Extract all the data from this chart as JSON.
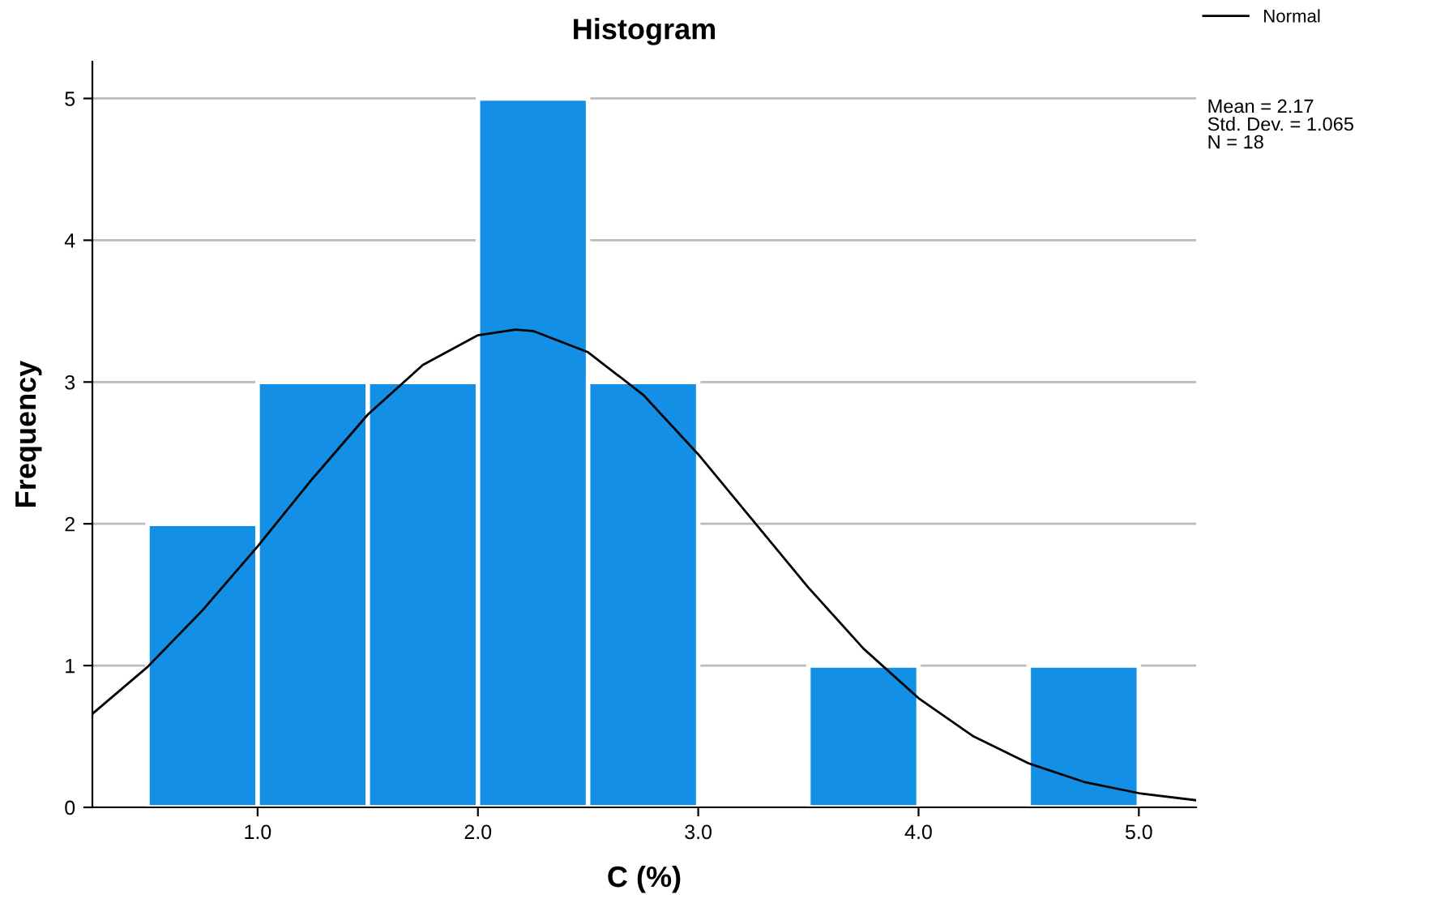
{
  "chart_data": {
    "type": "histogram",
    "title": "Histogram",
    "xlabel": "C (%)",
    "ylabel": "Frequency",
    "bins": [
      0.5,
      1.0,
      1.5,
      2.0,
      2.5,
      3.0,
      3.5,
      4.0,
      4.5,
      5.0
    ],
    "values": [
      2,
      3,
      3,
      5,
      3,
      0,
      1,
      0,
      1
    ],
    "color": "#138fe6",
    "series": [
      {
        "name": "Normal",
        "type": "line",
        "color": "#000000",
        "x": [
          0.25,
          0.5,
          0.75,
          1.0,
          1.25,
          1.5,
          1.75,
          2.0,
          2.17,
          2.25,
          2.5,
          2.75,
          3.0,
          3.25,
          3.5,
          3.75,
          4.0,
          4.25,
          4.5,
          4.75,
          5.0,
          5.26
        ],
        "values": [
          0.66,
          0.99,
          1.39,
          1.84,
          2.32,
          2.77,
          3.12,
          3.33,
          3.37,
          3.36,
          3.21,
          2.91,
          2.49,
          2.02,
          1.55,
          1.12,
          0.77,
          0.5,
          0.31,
          0.18,
          0.1,
          0.05
        ]
      }
    ],
    "xlim": [
      0.25,
      5.26
    ],
    "ylim": [
      0,
      5.26
    ],
    "xticks": [
      {
        "value": 1,
        "label": "1.0"
      },
      {
        "value": 2,
        "label": "2.0"
      },
      {
        "value": 3,
        "label": "3.0"
      },
      {
        "value": 4,
        "label": "4.0"
      },
      {
        "value": 5,
        "label": "5.0"
      }
    ],
    "yticks": [
      0,
      1,
      2,
      3,
      4,
      5
    ],
    "grid": "y",
    "legend": "top right",
    "annotations": [
      "Mean = 2.17",
      "Std. Dev. = 1.065",
      "N = 18"
    ]
  }
}
